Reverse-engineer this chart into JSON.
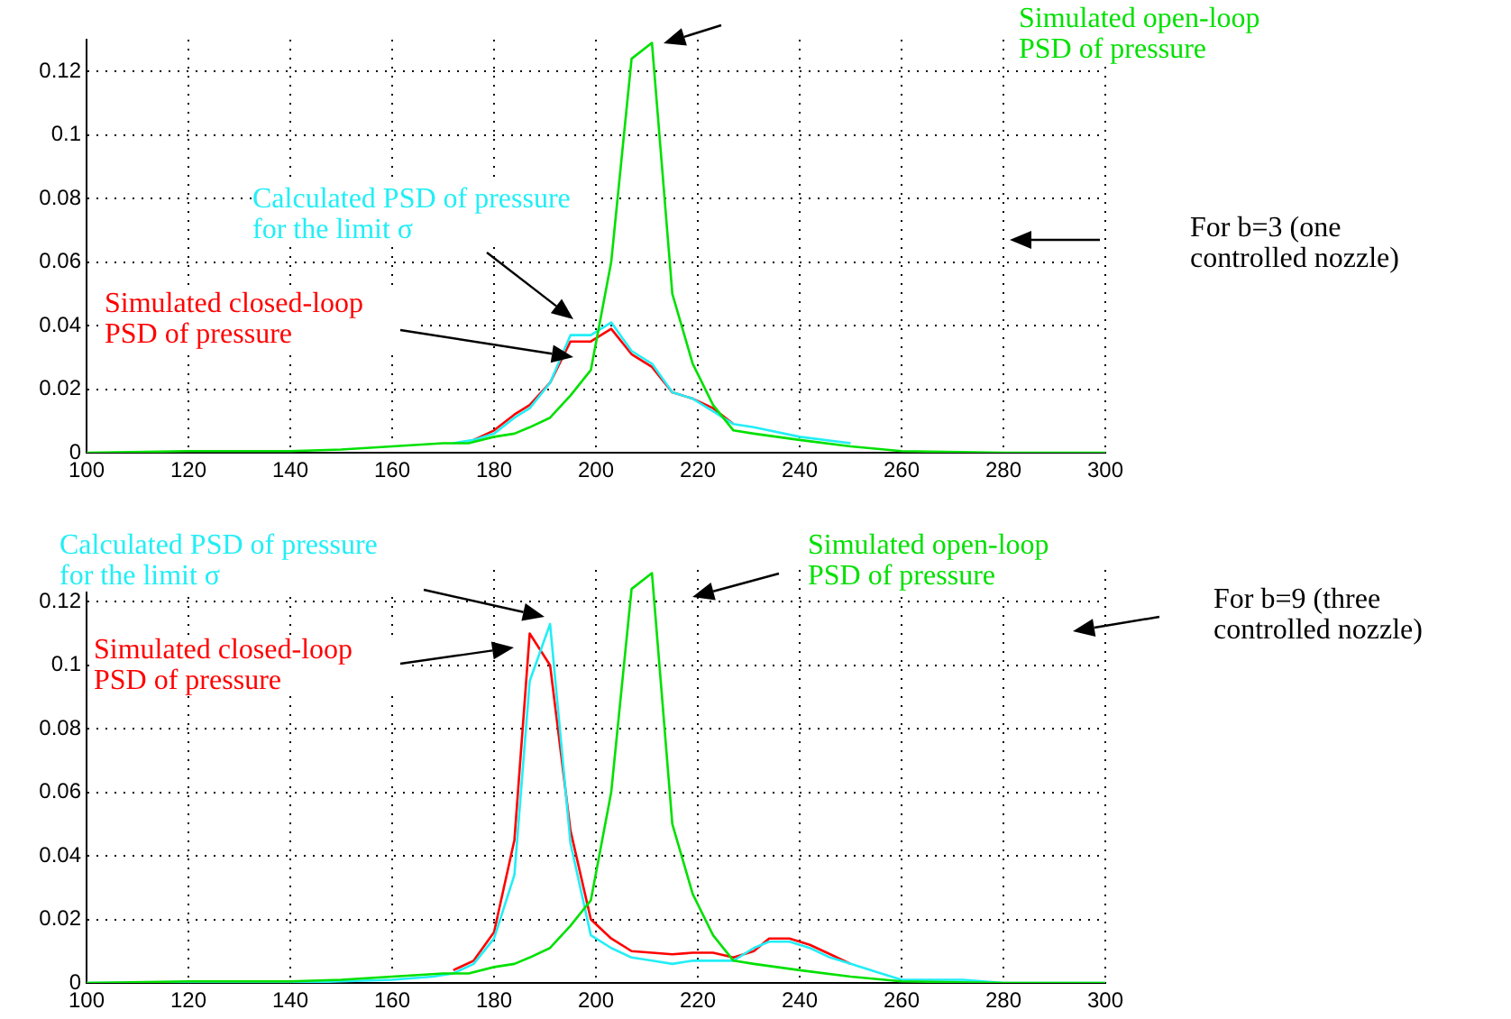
{
  "chart_data": [
    {
      "type": "line",
      "xlim": [
        100,
        300
      ],
      "xticks": [
        100,
        120,
        140,
        160,
        180,
        200,
        220,
        240,
        260,
        280,
        300
      ],
      "ylim": [
        0,
        0.13
      ],
      "yticks": [
        0,
        0.02,
        0.04,
        0.06,
        0.08,
        0.1,
        0.12
      ],
      "grid": true,
      "annotations": [
        "For b=3 (one controlled nozzle)"
      ],
      "series": [
        {
          "name": "Simulated open-loop PSD of pressure",
          "color": "#00e000",
          "x": [
            100,
            120,
            140,
            150,
            160,
            170,
            175,
            180,
            184,
            187,
            191,
            195,
            199,
            203,
            207,
            211,
            215,
            219,
            223,
            227,
            231,
            240,
            250,
            260,
            280,
            300
          ],
          "values": [
            0,
            0.0005,
            0.0005,
            0.001,
            0.002,
            0.003,
            0.003,
            0.005,
            0.006,
            0.008,
            0.011,
            0.018,
            0.026,
            0.06,
            0.124,
            0.129,
            0.05,
            0.028,
            0.015,
            0.007,
            0.006,
            0.004,
            0.002,
            0.0005,
            0,
            0
          ]
        },
        {
          "name": "Calculated PSD of pressure for the limit σ",
          "color": "#22eef6",
          "x": [
            172,
            176,
            180,
            184,
            187,
            191,
            195,
            199,
            203,
            207,
            211,
            215,
            219,
            223,
            227,
            231,
            240,
            250
          ],
          "values": [
            0.003,
            0.004,
            0.006,
            0.011,
            0.014,
            0.022,
            0.037,
            0.037,
            0.041,
            0.032,
            0.028,
            0.019,
            0.017,
            0.013,
            0.009,
            0.008,
            0.005,
            0.003
          ]
        },
        {
          "name": "Simulated closed-loop PSD of pressure",
          "color": "#ff0000",
          "x": [
            176,
            180,
            184,
            187,
            191,
            195,
            199,
            203,
            207,
            211,
            215,
            219,
            223,
            227
          ],
          "values": [
            0.004,
            0.007,
            0.012,
            0.015,
            0.022,
            0.035,
            0.035,
            0.039,
            0.031,
            0.027,
            0.019,
            0.017,
            0.014,
            0.009
          ]
        }
      ]
    },
    {
      "type": "line",
      "xlim": [
        100,
        300
      ],
      "xticks": [
        100,
        120,
        140,
        160,
        180,
        200,
        220,
        240,
        260,
        280,
        300
      ],
      "ylim": [
        0,
        0.13
      ],
      "yticks": [
        0,
        0.02,
        0.04,
        0.06,
        0.08,
        0.1,
        0.12
      ],
      "grid": true,
      "annotations": [
        "For b=9 (three controlled nozzle)"
      ],
      "series": [
        {
          "name": "Simulated open-loop PSD of pressure",
          "color": "#00e000",
          "x": [
            100,
            120,
            140,
            150,
            160,
            170,
            175,
            180,
            184,
            187,
            191,
            195,
            199,
            203,
            207,
            211,
            215,
            219,
            223,
            227,
            231,
            240,
            250,
            260,
            280,
            300
          ],
          "values": [
            0,
            0.0005,
            0.0005,
            0.001,
            0.002,
            0.003,
            0.003,
            0.005,
            0.006,
            0.008,
            0.011,
            0.018,
            0.026,
            0.06,
            0.124,
            0.129,
            0.05,
            0.028,
            0.015,
            0.007,
            0.006,
            0.004,
            0.002,
            0.0005,
            0,
            0
          ]
        },
        {
          "name": "Calculated PSD of pressure for the limit σ",
          "color": "#22eef6",
          "x": [
            100,
            140,
            150,
            160,
            168,
            172,
            176,
            180,
            184,
            187,
            191,
            195,
            199,
            203,
            207,
            211,
            215,
            219,
            223,
            227,
            231,
            234,
            238,
            242,
            246,
            250,
            256,
            260,
            272,
            280,
            300
          ],
          "values": [
            0,
            0,
            0.0005,
            0.001,
            0.002,
            0.003,
            0.006,
            0.014,
            0.034,
            0.095,
            0.113,
            0.044,
            0.015,
            0.011,
            0.008,
            0.007,
            0.006,
            0.007,
            0.007,
            0.007,
            0.011,
            0.013,
            0.013,
            0.011,
            0.008,
            0.006,
            0.003,
            0.001,
            0.001,
            0,
            0
          ]
        },
        {
          "name": "Simulated closed-loop PSD of pressure",
          "color": "#ff0000",
          "x": [
            172,
            176,
            180,
            184,
            187,
            191,
            195,
            199,
            203,
            207,
            211,
            215,
            219,
            223,
            227,
            231,
            234,
            238,
            242,
            246,
            250
          ],
          "values": [
            0.004,
            0.007,
            0.016,
            0.045,
            0.11,
            0.1,
            0.048,
            0.02,
            0.014,
            0.01,
            0.0095,
            0.009,
            0.0095,
            0.0095,
            0.008,
            0.01,
            0.014,
            0.014,
            0.012,
            0.009,
            0.006
          ]
        }
      ]
    }
  ]
}
